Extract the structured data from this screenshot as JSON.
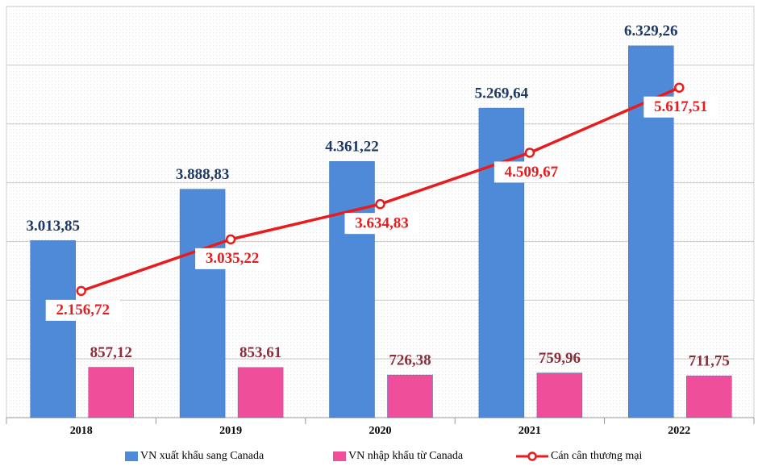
{
  "chart_data": {
    "type": "bar_line",
    "categories": [
      "2018",
      "2019",
      "2020",
      "2021",
      "2022"
    ],
    "series": [
      {
        "name": "VN xuất khẩu sang Canada",
        "type": "bar",
        "color": "#4f8ad9",
        "label_color": "#1f3864",
        "values": [
          3013.85,
          3888.83,
          4361.22,
          5269.64,
          6329.26
        ],
        "value_labels": [
          "3.013,85",
          "3.888,83",
          "4.361,22",
          "5.269,64",
          "6.329,26"
        ]
      },
      {
        "name": "VN nhập khẩu từ Canada",
        "type": "bar",
        "color": "#ef4f9a",
        "label_color": "#8b2e3a",
        "values": [
          857.12,
          853.61,
          726.38,
          759.96,
          711.75
        ],
        "value_labels": [
          "857,12",
          "853,61",
          "726,38",
          "759,96",
          "711,75"
        ]
      },
      {
        "name": "Cán cân thương mại",
        "type": "line",
        "color": "#e81c1c",
        "label_color": "#e81c1c",
        "values": [
          2156.72,
          3035.22,
          3634.83,
          4509.67,
          5617.51
        ],
        "value_labels": [
          "2.156,72",
          "3.035,22",
          "3.634,83",
          "4.509,67",
          "5.617,51"
        ]
      }
    ],
    "ylim": [
      0,
      7000
    ],
    "yticks": [
      0,
      1000,
      2000,
      3000,
      4000,
      5000,
      6000,
      7000
    ],
    "grid": true
  }
}
